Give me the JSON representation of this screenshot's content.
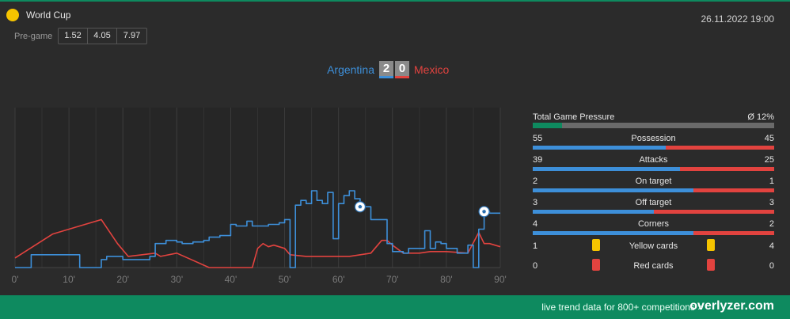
{
  "header": {
    "competition": "World Cup",
    "datetime": "26.11.2022 19:00",
    "pregame_label": "Pre-game",
    "odds": [
      "1.52",
      "4.05",
      "7.97"
    ]
  },
  "match": {
    "home_team": "Argentina",
    "away_team": "Mexico",
    "home_score": "2",
    "away_score": "0"
  },
  "colors": {
    "home": "#3d8fd9",
    "away": "#e2433f",
    "accent": "#0e8a5f",
    "yellow_card": "#f5c400"
  },
  "stats": {
    "pressure": {
      "label": "Total Game Pressure",
      "value": "Ø 12%",
      "fraction": 0.12
    },
    "rows": [
      {
        "name": "Possession",
        "home": "55",
        "away": "45"
      },
      {
        "name": "Attacks",
        "home": "39",
        "away": "25"
      },
      {
        "name": "On target",
        "home": "2",
        "away": "1"
      },
      {
        "name": "Off target",
        "home": "3",
        "away": "3"
      },
      {
        "name": "Corners",
        "home": "4",
        "away": "2"
      }
    ],
    "cards": [
      {
        "name": "Yellow cards",
        "home": "1",
        "away": "4",
        "icon": "yellow-card-icon"
      },
      {
        "name": "Red cards",
        "home": "0",
        "away": "0",
        "icon": "red-card-icon"
      }
    ]
  },
  "chart_data": {
    "type": "line",
    "x_ticks": [
      "0'",
      "10'",
      "20'",
      "30'",
      "40'",
      "50'",
      "60'",
      "70'",
      "80'",
      "90'"
    ],
    "xlim": [
      0,
      90
    ],
    "ylim": [
      0,
      100
    ],
    "grid": true,
    "series": [
      {
        "name": "Argentina",
        "color": "#3d8fd9",
        "x": [
          0,
          3,
          3,
          12,
          12,
          16,
          16,
          17,
          17,
          20,
          20,
          25,
          25,
          26,
          26,
          28,
          28,
          30,
          30,
          31,
          31,
          33,
          33,
          35,
          35,
          36,
          36,
          38,
          38,
          40,
          40,
          41,
          41,
          43,
          43,
          44,
          44,
          47,
          47,
          49,
          49,
          50,
          50,
          51,
          51,
          52,
          52,
          53,
          53,
          54,
          54,
          55,
          55,
          56,
          56,
          57,
          57,
          58,
          58,
          59,
          59,
          60,
          60,
          61,
          61,
          62,
          62,
          63,
          63,
          64,
          64,
          66,
          66,
          69,
          69,
          70,
          70,
          72,
          72,
          73,
          73,
          76,
          76,
          77,
          77,
          78,
          78,
          79,
          79,
          80,
          80,
          82,
          82,
          84,
          84,
          85,
          85,
          86,
          86,
          87,
          87,
          88,
          88,
          90
        ],
        "y": [
          0,
          0,
          8,
          8,
          0,
          0,
          5,
          5,
          7,
          7,
          5,
          5,
          7,
          7,
          15,
          15,
          17,
          17,
          16,
          16,
          15,
          15,
          16,
          16,
          17,
          17,
          19,
          19,
          20,
          20,
          27,
          27,
          26,
          26,
          29,
          29,
          26,
          26,
          27,
          27,
          28,
          28,
          30,
          30,
          0,
          0,
          39,
          39,
          42,
          42,
          40,
          40,
          48,
          48,
          42,
          42,
          40,
          40,
          47,
          47,
          18,
          18,
          40,
          40,
          45,
          45,
          48,
          48,
          43,
          43,
          38,
          38,
          30,
          30,
          15,
          15,
          10,
          10,
          9,
          9,
          12,
          12,
          23,
          23,
          12,
          12,
          16,
          16,
          15,
          15,
          12,
          12,
          9,
          9,
          14,
          14,
          0,
          0,
          24,
          24,
          35,
          35,
          34,
          34
        ]
      },
      {
        "name": "Mexico",
        "color": "#e2433f",
        "x": [
          0,
          7,
          7,
          11,
          11,
          16,
          16,
          19,
          19,
          21,
          21,
          26,
          26,
          27,
          27,
          30,
          30,
          36,
          36,
          44,
          44,
          45,
          45,
          46,
          46,
          47,
          47,
          48,
          48,
          50,
          50,
          51,
          51,
          54,
          54,
          62,
          62,
          66,
          66,
          68,
          68,
          69,
          69,
          70,
          70,
          72,
          72,
          75,
          75,
          77,
          77,
          80,
          80,
          84,
          84,
          86,
          86,
          87,
          87,
          88,
          88,
          90
        ],
        "y": [
          6,
          21,
          21,
          25,
          25,
          30,
          30,
          15,
          15,
          7,
          7,
          9,
          9,
          7,
          7,
          9,
          9,
          0,
          0,
          0,
          0,
          12,
          12,
          15,
          15,
          13,
          13,
          14,
          14,
          12,
          12,
          8,
          8,
          7,
          7,
          7,
          7,
          9,
          9,
          17,
          17,
          17,
          17,
          14,
          14,
          9,
          9,
          9,
          9,
          10,
          10,
          10,
          10,
          9,
          9,
          22,
          22,
          15,
          15,
          15,
          15,
          13
        ]
      }
    ],
    "goals": [
      {
        "team": "Argentina",
        "minute": 64,
        "icon": "football-icon"
      },
      {
        "team": "Argentina",
        "minute": 87,
        "icon": "football-icon"
      }
    ]
  },
  "footer": {
    "text": "live trend data for 800+ competitions »",
    "brand": "overlyzer.com"
  }
}
